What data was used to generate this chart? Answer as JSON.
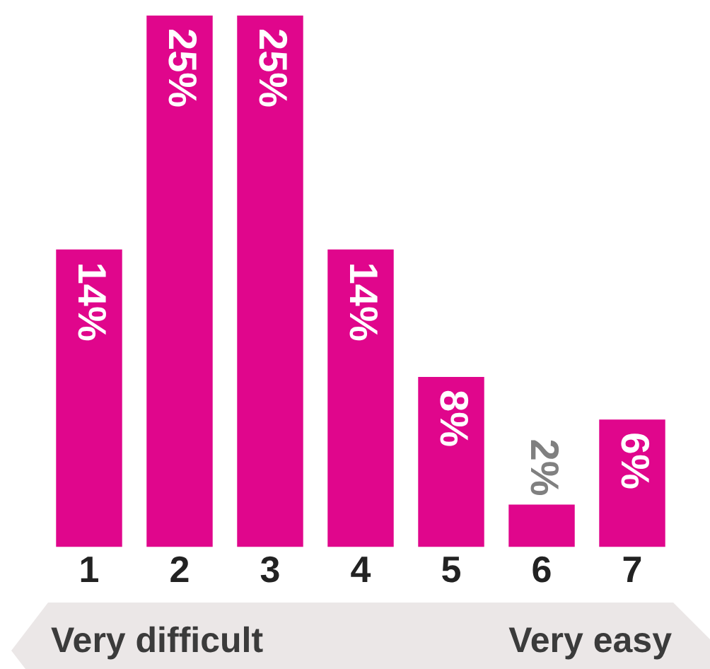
{
  "chart_data": {
    "type": "bar",
    "categories": [
      "1",
      "2",
      "3",
      "4",
      "5",
      "6",
      "7"
    ],
    "values": [
      14,
      25,
      25,
      14,
      8,
      2,
      6
    ],
    "color": "#e0068c",
    "value_labels": [
      "14%",
      "25%",
      "25%",
      "14%",
      "8%",
      "2%",
      "6%"
    ],
    "ylim": [
      0,
      25
    ],
    "tick_labels": "x",
    "grid": false,
    "legend": false,
    "annotations": [
      "Very difficult",
      "Very easy"
    ]
  }
}
